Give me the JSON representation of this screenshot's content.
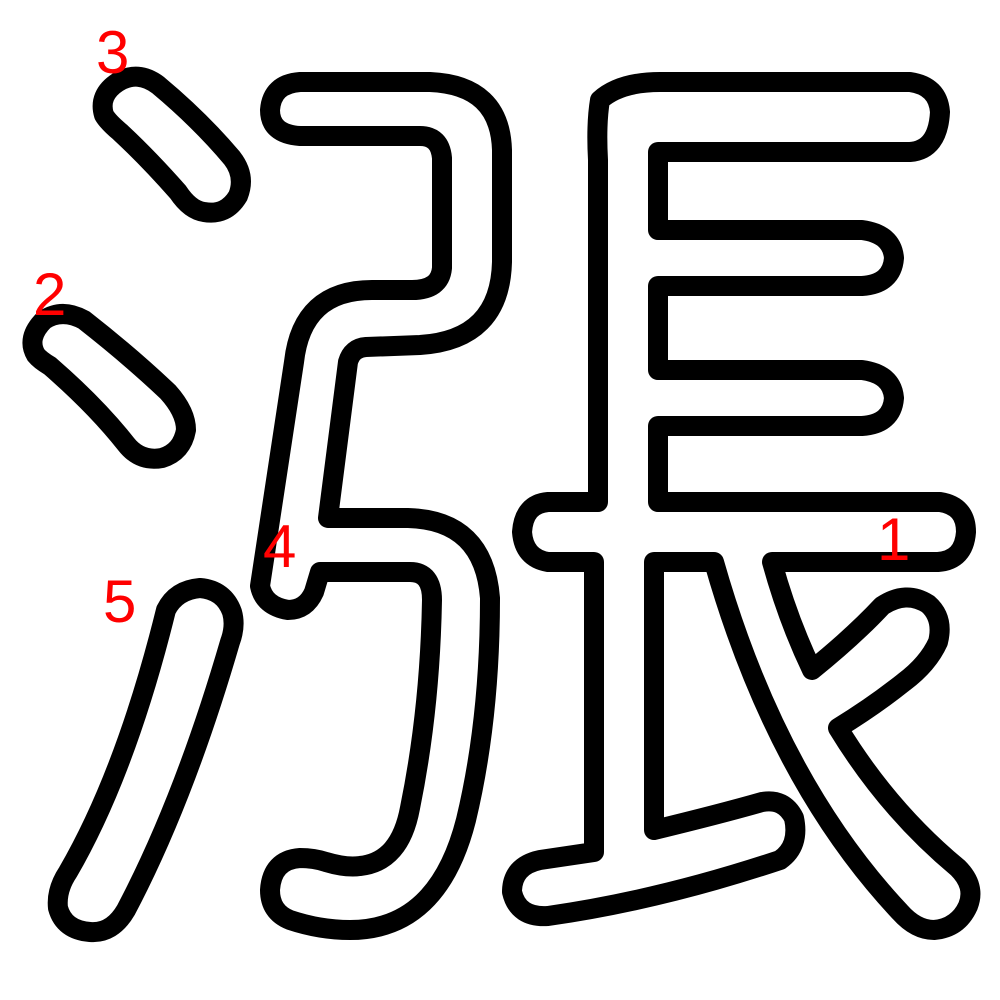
{
  "character": "漲",
  "colors": {
    "background": "#ffffff",
    "outline": "#000000",
    "fill": "#ffffff",
    "label": "#ff0000"
  },
  "stroke_labels": [
    "1",
    "2",
    "3",
    "4",
    "5"
  ]
}
